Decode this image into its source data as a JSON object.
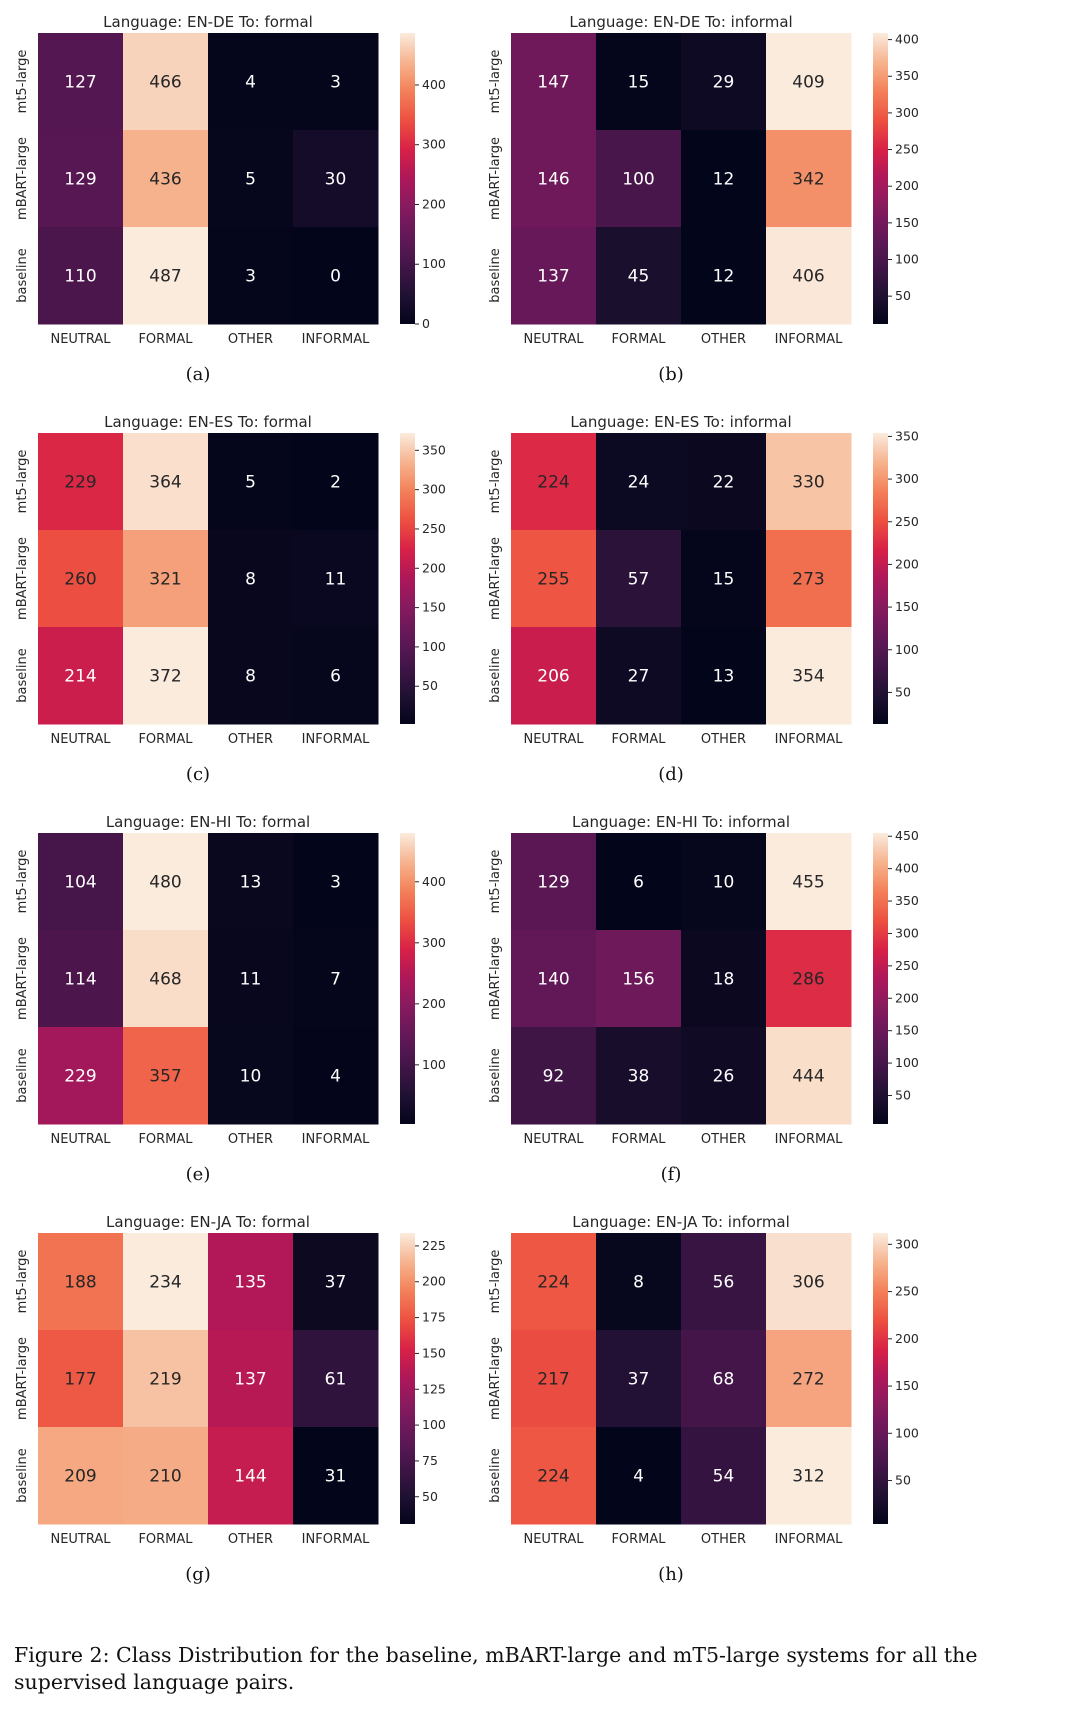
{
  "caption": "Figure 2: Class Distribution for the baseline, mBART-large and mT5-large systems for all the supervised language pairs.",
  "colormap": "rocket",
  "chart_data": [
    {
      "type": "heatmap",
      "panel": "(a)",
      "title": "Language: EN-DE To: formal",
      "x_categories": [
        "NEUTRAL",
        "FORMAL",
        "OTHER",
        "INFORMAL"
      ],
      "y_categories": [
        "mt5-large",
        "mBART-large",
        "baseline"
      ],
      "values": [
        [
          127,
          466,
          4,
          3
        ],
        [
          129,
          436,
          5,
          30
        ],
        [
          110,
          487,
          3,
          0
        ]
      ],
      "colorbar_ticks": [
        0,
        100,
        200,
        300,
        400
      ]
    },
    {
      "type": "heatmap",
      "panel": "(b)",
      "title": "Language: EN-DE To: informal",
      "x_categories": [
        "NEUTRAL",
        "FORMAL",
        "OTHER",
        "INFORMAL"
      ],
      "y_categories": [
        "mt5-large",
        "mBART-large",
        "baseline"
      ],
      "values": [
        [
          147,
          15,
          29,
          409
        ],
        [
          146,
          100,
          12,
          342
        ],
        [
          137,
          45,
          12,
          406
        ]
      ],
      "colorbar_ticks": [
        50,
        100,
        150,
        200,
        250,
        300,
        350,
        400
      ]
    },
    {
      "type": "heatmap",
      "panel": "(c)",
      "title": "Language: EN-ES To: formal",
      "x_categories": [
        "NEUTRAL",
        "FORMAL",
        "OTHER",
        "INFORMAL"
      ],
      "y_categories": [
        "mt5-large",
        "mBART-large",
        "baseline"
      ],
      "values": [
        [
          229,
          364,
          5,
          2
        ],
        [
          260,
          321,
          8,
          11
        ],
        [
          214,
          372,
          8,
          6
        ]
      ],
      "colorbar_ticks": [
        50,
        100,
        150,
        200,
        250,
        300,
        350
      ]
    },
    {
      "type": "heatmap",
      "panel": "(d)",
      "title": "Language: EN-ES To: informal",
      "x_categories": [
        "NEUTRAL",
        "FORMAL",
        "OTHER",
        "INFORMAL"
      ],
      "y_categories": [
        "mt5-large",
        "mBART-large",
        "baseline"
      ],
      "values": [
        [
          224,
          24,
          22,
          330
        ],
        [
          255,
          57,
          15,
          273
        ],
        [
          206,
          27,
          13,
          354
        ]
      ],
      "colorbar_ticks": [
        50,
        100,
        150,
        200,
        250,
        300,
        350
      ]
    },
    {
      "type": "heatmap",
      "panel": "(e)",
      "title": "Language: EN-HI To: formal",
      "x_categories": [
        "NEUTRAL",
        "FORMAL",
        "OTHER",
        "INFORMAL"
      ],
      "y_categories": [
        "mt5-large",
        "mBART-large",
        "baseline"
      ],
      "values": [
        [
          104,
          480,
          13,
          3
        ],
        [
          114,
          468,
          11,
          7
        ],
        [
          229,
          357,
          10,
          4
        ]
      ],
      "colorbar_ticks": [
        100,
        200,
        300,
        400
      ]
    },
    {
      "type": "heatmap",
      "panel": "(f)",
      "title": "Language: EN-HI To: informal",
      "x_categories": [
        "NEUTRAL",
        "FORMAL",
        "OTHER",
        "INFORMAL"
      ],
      "y_categories": [
        "mt5-large",
        "mBART-large",
        "baseline"
      ],
      "values": [
        [
          129,
          6,
          10,
          455
        ],
        [
          140,
          156,
          18,
          286
        ],
        [
          92,
          38,
          26,
          444
        ]
      ],
      "colorbar_ticks": [
        50,
        100,
        150,
        200,
        250,
        300,
        350,
        400,
        450
      ]
    },
    {
      "type": "heatmap",
      "panel": "(g)",
      "title": "Language: EN-JA To: formal",
      "x_categories": [
        "NEUTRAL",
        "FORMAL",
        "OTHER",
        "INFORMAL"
      ],
      "y_categories": [
        "mt5-large",
        "mBART-large",
        "baseline"
      ],
      "values": [
        [
          188,
          234,
          135,
          37
        ],
        [
          177,
          219,
          137,
          61
        ],
        [
          209,
          210,
          144,
          31
        ]
      ],
      "colorbar_ticks": [
        50,
        75,
        100,
        125,
        150,
        175,
        200,
        225
      ]
    },
    {
      "type": "heatmap",
      "panel": "(h)",
      "title": "Language: EN-JA To: informal",
      "x_categories": [
        "NEUTRAL",
        "FORMAL",
        "OTHER",
        "INFORMAL"
      ],
      "y_categories": [
        "mt5-large",
        "mBART-large",
        "baseline"
      ],
      "values": [
        [
          224,
          8,
          56,
          306
        ],
        [
          217,
          37,
          68,
          272
        ],
        [
          224,
          4,
          54,
          312
        ]
      ],
      "colorbar_ticks": [
        50,
        100,
        150,
        200,
        250,
        300
      ]
    }
  ]
}
